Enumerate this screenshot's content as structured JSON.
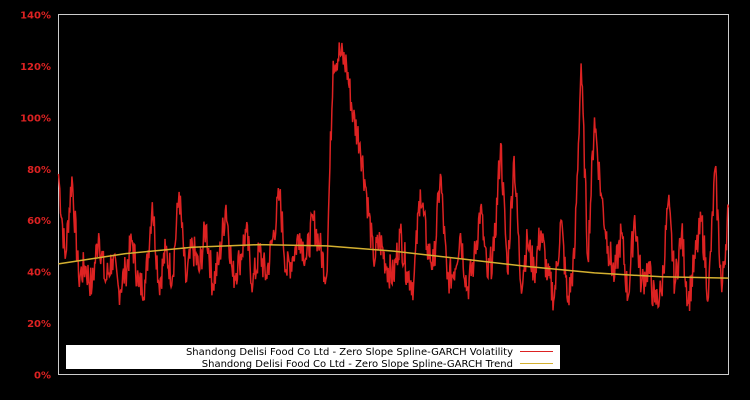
{
  "chart_data": {
    "type": "line",
    "title": "",
    "xlabel": "",
    "ylabel": "",
    "ylim": [
      0,
      140
    ],
    "yticks": [
      "0%",
      "20%",
      "40%",
      "60%",
      "80%",
      "100%",
      "120%",
      "140%"
    ],
    "grid": false,
    "legend_position": "bottom-left inside",
    "series": [
      {
        "name": "Shandong Delisi Food Co Ltd - Zero Slope Spline-GARCH Volatility",
        "color": "#dd2222",
        "x": [
          0,
          1,
          2,
          3,
          4,
          5,
          6,
          7,
          8,
          9,
          10,
          11,
          12,
          13,
          14,
          15,
          16,
          17,
          18,
          19,
          20,
          21,
          22,
          23,
          24,
          25,
          26,
          27,
          28,
          29,
          30,
          31,
          32,
          33,
          34,
          35,
          36,
          37,
          38,
          39,
          40,
          41,
          42,
          43,
          44,
          45,
          46,
          47,
          48,
          49,
          50,
          51,
          52,
          53,
          54,
          55,
          56,
          57,
          58,
          59,
          60,
          61,
          62,
          63,
          64,
          65,
          66,
          67,
          68,
          69,
          70,
          71,
          72,
          73,
          74,
          75,
          76,
          77,
          78,
          79,
          80,
          81,
          82,
          83,
          84,
          85,
          86,
          87,
          88,
          89,
          90,
          91,
          92,
          93,
          94,
          95,
          96,
          97,
          98,
          99,
          100
        ],
        "values": [
          78,
          45,
          77,
          38,
          42,
          34,
          55,
          36,
          45,
          33,
          40,
          52,
          34,
          36,
          67,
          35,
          48,
          38,
          71,
          36,
          50,
          40,
          58,
          35,
          45,
          66,
          38,
          44,
          56,
          35,
          48,
          38,
          53,
          70,
          40,
          46,
          55,
          45,
          60,
          50,
          38,
          122,
          125,
          120,
          100,
          90,
          70,
          45,
          52,
          42,
          38,
          55,
          40,
          35,
          72,
          50,
          42,
          78,
          37,
          40,
          55,
          33,
          44,
          65,
          38,
          48,
          90,
          40,
          85,
          35,
          52,
          40,
          56,
          38,
          30,
          60,
          28,
          45,
          121,
          45,
          100,
          70,
          50,
          38,
          55,
          30,
          62,
          35,
          42,
          28,
          32,
          67,
          35,
          55,
          28,
          45,
          60,
          30,
          80,
          32,
          65
        ],
        "ylim": [
          0,
          140
        ]
      },
      {
        "name": "Shandong Delisi Food Co Ltd - Zero Slope Spline-GARCH Trend",
        "color": "#d4b030",
        "x": [
          0,
          10,
          20,
          30,
          40,
          50,
          60,
          70,
          80,
          90,
          100
        ],
        "values": [
          43,
          47,
          49.5,
          50.5,
          50,
          48,
          45,
          42,
          39.5,
          38,
          37.5
        ]
      }
    ]
  },
  "legend": {
    "items": [
      {
        "label": "Shandong Delisi Food Co Ltd - Zero Slope Spline-GARCH Volatility",
        "color": "#dd2222"
      },
      {
        "label": "Shandong Delisi Food Co Ltd - Zero Slope Spline-GARCH Trend",
        "color": "#d4b030"
      }
    ]
  }
}
